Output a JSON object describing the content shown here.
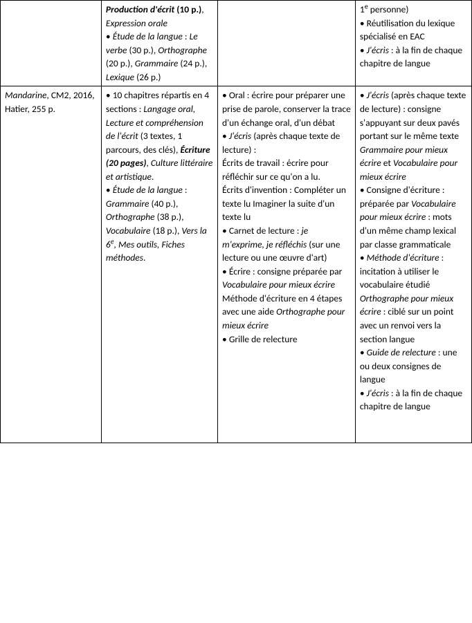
{
  "row1": {
    "col1": "",
    "col2": {
      "frag1": "Production d'écrit",
      "frag2": " (10 p.)",
      "frag3": ", ",
      "frag4": "Expression orale",
      "frag5": "• ",
      "frag6": "Étude de la langue",
      "frag7": " : ",
      "frag8": "Le verbe",
      "frag9": " (30 p.), ",
      "frag10": "Orthographe",
      "frag11": " (20 p.), ",
      "frag12": "Grammaire",
      "frag13": " (24 p.), ",
      "frag14": "Lexique",
      "frag15": " (26 p.)"
    },
    "col3": "",
    "col4": {
      "frag1": "1",
      "frag2": "e",
      "frag3": " personne)",
      "frag4": "• Réutilisation du lexique spécialisé en EAC",
      "frag5": "• ",
      "frag6": "J'écris",
      "frag7": " : à la fin de chaque chapitre de langue"
    }
  },
  "row2": {
    "col1": {
      "frag1": "Mandarine",
      "frag2": ", CM2, 2016,",
      "frag3": "Hatier, 255 p."
    },
    "col2": {
      "frag1": "• 10 chapitres répartis en 4 sections : ",
      "frag2": "Langage oral, Lecture et compréhension de l'écrit",
      "frag3": " (3 textes, 1 parcours, des clés), ",
      "frag4": "Écriture (20 pages)",
      "frag5": ", ",
      "frag6": "Culture littéraire et artistique",
      "frag7": ".",
      "frag8": "• ",
      "frag9": "Étude de la langue",
      "frag10": " : ",
      "frag11": "Grammaire",
      "frag12": " (40 p.), ",
      "frag13": "Orthographe",
      "frag14": " (38 p.), ",
      "frag15": "Vocabulaire",
      "frag16": " (18 p.), ",
      "frag17": "Vers la 6",
      "frag18": "e",
      "frag19": ", Mes outils, Fiches méthodes",
      "frag20": "."
    },
    "col3": {
      "frag1": "• Oral : écrire pour préparer une prise de parole, conserver la trace d'un échange oral, d'un débat",
      "frag2": "• ",
      "frag3": "J'écris",
      "frag4": " (après chaque texte de lecture) :",
      "frag5": "Écrits de travail : écrire pour réfléchir sur ce qu'on a lu.",
      "frag6": "Écrits d'invention : Compléter un texte lu Imaginer la suite d'un texte lu",
      "frag7": "• Carnet de lecture : ",
      "frag8": "je m'exprime, je réfléchis",
      "frag9": " (sur une lecture ou une œuvre d'art)",
      "frag10": "• Écrire :  consigne préparée par ",
      "frag11": "Vocabulaire pour mieux écrire",
      "frag12": "Méthode d'écriture en 4 étapes avec une aide ",
      "frag13": "Orthographe pour mieux écrire",
      "frag14": "• Grille de relecture"
    },
    "col4": {
      "frag1": "• ",
      "frag2": "J'écris",
      "frag3": " (après chaque texte de lecture) : consigne s'appuyant sur deux pavés portant sur le même texte ",
      "frag4": "Grammaire pour mieux écrire",
      "frag5": " et ",
      "frag6": "Vocabulaire pour mieux écrire",
      "frag7": "• Consigne d'écriture : préparée par ",
      "frag8": "Vocabulaire pour mieux écrire",
      "frag9": " : mots d'un même champ lexical par classe grammaticale",
      "frag10": "• ",
      "frag11": "Méthode d'écriture",
      "frag12": " : incitation à utiliser le vocabulaire étudié",
      "frag13": "Orthographe pour mieux écrire",
      "frag14": " : ciblé sur un point avec un renvoi vers la section langue",
      "frag15": "• ",
      "frag16": "Guide de relecture",
      "frag17": " : une ou deux consignes de langue",
      "frag18": "• ",
      "frag19": "J'écris",
      "frag20": " : à la fin de chaque chapitre de langue"
    }
  }
}
